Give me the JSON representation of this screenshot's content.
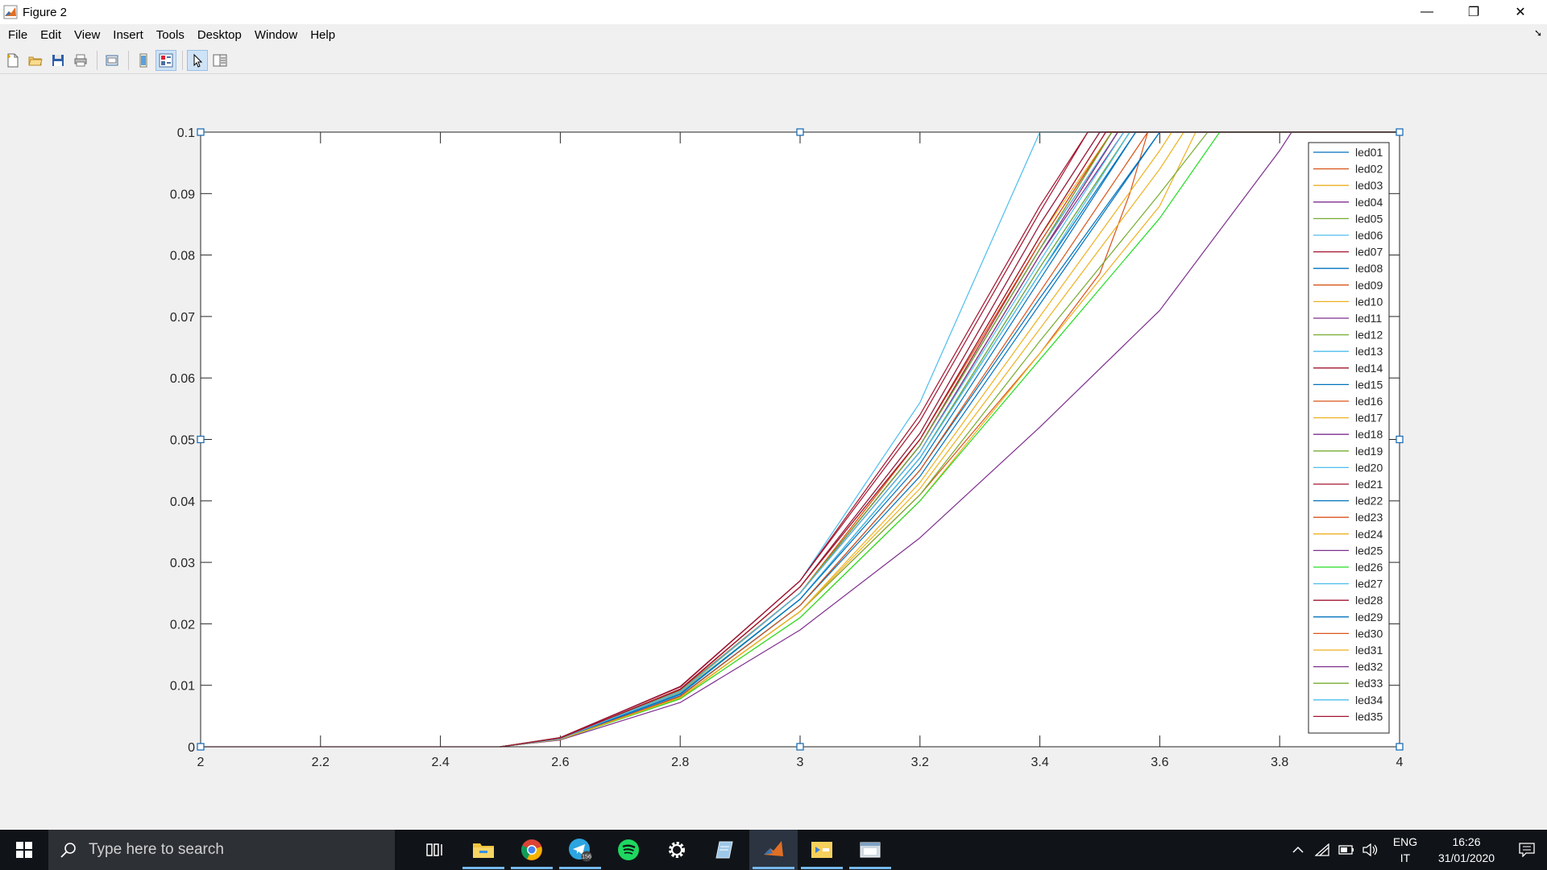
{
  "window": {
    "title": "Figure 2",
    "controls": {
      "minimize": "—",
      "maximize": "❐",
      "close": "✕"
    }
  },
  "menu": {
    "items": [
      "File",
      "Edit",
      "View",
      "Insert",
      "Tools",
      "Desktop",
      "Window",
      "Help"
    ],
    "dock_arrow": "➘"
  },
  "toolbar": {
    "buttons": [
      "new-figure-icon",
      "open-file-icon",
      "save-icon",
      "print-icon",
      "print-preview-icon",
      "hide-plot-tools-icon",
      "show-plot-tools-icon",
      "edit-plot-arrow-icon",
      "property-inspector-icon"
    ]
  },
  "taskbar": {
    "search_placeholder": "Type here to search",
    "telegram_badge": "156",
    "apps": [
      "task-view-icon",
      "file-explorer-icon",
      "chrome-icon",
      "telegram-icon",
      "spotify-icon",
      "settings-icon",
      "notepad-icon",
      "matlab-icon",
      "sticky-app-icon",
      "window-app-icon"
    ],
    "lang_line1": "ENG",
    "lang_line2": "IT",
    "time": "16:26",
    "date": "31/01/2020"
  },
  "chart_data": {
    "type": "line",
    "title": "",
    "xlabel": "",
    "ylabel": "",
    "xlim": [
      2,
      4
    ],
    "ylim": [
      0,
      0.1
    ],
    "xticks": [
      "2",
      "2.2",
      "2.4",
      "2.6",
      "2.8",
      "3",
      "3.2",
      "3.4",
      "3.6",
      "3.8",
      "4"
    ],
    "yticks": [
      "0",
      "0.01",
      "0.02",
      "0.03",
      "0.04",
      "0.05",
      "0.06",
      "0.07",
      "0.08",
      "0.09",
      "0.1"
    ],
    "legend_position": "top-right",
    "grid": false,
    "series": [
      {
        "name": "led01",
        "color": "#0072bd",
        "x": [
          2.5,
          2.6,
          2.8,
          3.0,
          3.2,
          3.4,
          3.55
        ],
        "y": [
          0,
          0.0013,
          0.0085,
          0.024,
          0.047,
          0.078,
          0.1
        ]
      },
      {
        "name": "led02",
        "color": "#d95319",
        "x": [
          2.5,
          2.6,
          2.8,
          3.0,
          3.2,
          3.4,
          3.53
        ],
        "y": [
          0,
          0.0013,
          0.009,
          0.025,
          0.049,
          0.081,
          0.1
        ]
      },
      {
        "name": "led03",
        "color": "#edb120",
        "x": [
          2.5,
          2.6,
          2.8,
          3.0,
          3.2,
          3.4,
          3.52
        ],
        "y": [
          0,
          0.0014,
          0.0092,
          0.025,
          0.05,
          0.083,
          0.1
        ]
      },
      {
        "name": "led04",
        "color": "#7e2f8e",
        "x": [
          2.5,
          2.6,
          2.8,
          3.0,
          3.2,
          3.4,
          3.53
        ],
        "y": [
          0,
          0.0013,
          0.009,
          0.025,
          0.049,
          0.081,
          0.1
        ]
      },
      {
        "name": "led05",
        "color": "#77ac30",
        "x": [
          2.5,
          2.6,
          2.8,
          3.0,
          3.2,
          3.4,
          3.55
        ],
        "y": [
          0,
          0.0013,
          0.0088,
          0.024,
          0.047,
          0.078,
          0.1
        ]
      },
      {
        "name": "led06",
        "color": "#4dbeee",
        "x": [
          2.5,
          2.6,
          2.8,
          3.0,
          3.2,
          3.4
        ],
        "y": [
          0,
          0.0015,
          0.0098,
          0.027,
          0.056,
          0.1
        ]
      },
      {
        "name": "led07",
        "color": "#a2142f",
        "x": [
          2.5,
          2.6,
          2.8,
          3.0,
          3.2,
          3.4,
          3.48
        ],
        "y": [
          0,
          0.0015,
          0.0098,
          0.027,
          0.054,
          0.088,
          0.1
        ]
      },
      {
        "name": "led08",
        "color": "#0072bd",
        "x": [
          2.5,
          2.6,
          2.8,
          3.0,
          3.2,
          3.4,
          3.56
        ],
        "y": [
          0,
          0.0013,
          0.0087,
          0.024,
          0.047,
          0.077,
          0.1
        ]
      },
      {
        "name": "led09",
        "color": "#d95319",
        "x": [
          2.5,
          2.6,
          2.8,
          3.0,
          3.2,
          3.4,
          3.5,
          3.55,
          3.58
        ],
        "y": [
          0,
          0.0012,
          0.008,
          0.022,
          0.041,
          0.064,
          0.077,
          0.09,
          0.1
        ]
      },
      {
        "name": "led10",
        "color": "#edb120",
        "x": [
          2.5,
          2.6,
          2.8,
          3.0,
          3.2,
          3.4,
          3.6,
          3.66
        ],
        "y": [
          0,
          0.0012,
          0.0078,
          0.021,
          0.04,
          0.064,
          0.088,
          0.1
        ]
      },
      {
        "name": "led11",
        "color": "#7e2f8e",
        "x": [
          2.5,
          2.6,
          2.8,
          3.0,
          3.2,
          3.4,
          3.54
        ],
        "y": [
          0,
          0.0013,
          0.009,
          0.025,
          0.048,
          0.08,
          0.1
        ]
      },
      {
        "name": "led12",
        "color": "#77ac30",
        "x": [
          2.5,
          2.6,
          2.8,
          3.0,
          3.2,
          3.4,
          3.52
        ],
        "y": [
          0,
          0.0014,
          0.009,
          0.025,
          0.049,
          0.081,
          0.1
        ]
      },
      {
        "name": "led13",
        "color": "#4dbeee",
        "x": [
          2.5,
          2.6,
          2.8,
          3.0,
          3.2,
          3.4,
          3.5
        ],
        "y": [
          0,
          0.0014,
          0.0093,
          0.026,
          0.051,
          0.085,
          0.1
        ]
      },
      {
        "name": "led14",
        "color": "#a2142f",
        "x": [
          2.5,
          2.6,
          2.8,
          3.0,
          3.2,
          3.4,
          3.5
        ],
        "y": [
          0,
          0.0014,
          0.0094,
          0.026,
          0.051,
          0.085,
          0.1
        ]
      },
      {
        "name": "led15",
        "color": "#0072bd",
        "x": [
          2.5,
          2.6,
          2.8,
          3.0,
          3.2,
          3.4,
          3.6
        ],
        "y": [
          0,
          0.0012,
          0.0082,
          0.023,
          0.044,
          0.072,
          0.1
        ]
      },
      {
        "name": "led16",
        "color": "#d95319",
        "x": [
          2.5,
          2.6,
          2.8,
          3.0,
          3.2,
          3.4,
          3.51
        ],
        "y": [
          0,
          0.0014,
          0.0093,
          0.026,
          0.05,
          0.083,
          0.1
        ]
      },
      {
        "name": "led17",
        "color": "#edb120",
        "x": [
          2.5,
          2.6,
          2.8,
          3.0,
          3.2,
          3.4,
          3.53
        ],
        "y": [
          0,
          0.0013,
          0.0089,
          0.025,
          0.048,
          0.08,
          0.1
        ]
      },
      {
        "name": "led18",
        "color": "#7e2f8e",
        "x": [
          2.5,
          2.6,
          2.8,
          3.0,
          3.2,
          3.4,
          3.6,
          3.8,
          3.82
        ],
        "y": [
          0,
          0.0011,
          0.0072,
          0.019,
          0.034,
          0.052,
          0.071,
          0.097,
          0.1
        ]
      },
      {
        "name": "led19",
        "color": "#77ac30",
        "x": [
          2.5,
          2.6,
          2.8,
          3.0,
          3.2,
          3.4,
          3.6,
          3.68
        ],
        "y": [
          0,
          0.0012,
          0.008,
          0.022,
          0.041,
          0.066,
          0.09,
          0.1
        ]
      },
      {
        "name": "led20",
        "color": "#4dbeee",
        "x": [
          2.5,
          2.6,
          2.8,
          3.0,
          3.2,
          3.4,
          3.53
        ],
        "y": [
          0,
          0.0013,
          0.009,
          0.025,
          0.049,
          0.081,
          0.1
        ]
      },
      {
        "name": "led21",
        "color": "#a2142f",
        "x": [
          2.5,
          2.6,
          2.8,
          3.0,
          3.2,
          3.4,
          3.52
        ],
        "y": [
          0,
          0.0014,
          0.0092,
          0.025,
          0.049,
          0.082,
          0.1
        ]
      },
      {
        "name": "led22",
        "color": "#0072bd",
        "x": [
          2.5,
          2.6,
          2.8,
          3.0,
          3.2,
          3.4,
          3.6
        ],
        "y": [
          0,
          0.0012,
          0.0083,
          0.023,
          0.045,
          0.073,
          0.1
        ]
      },
      {
        "name": "led23",
        "color": "#d95319",
        "x": [
          2.5,
          2.6,
          2.8,
          3.0,
          3.2,
          3.4,
          3.58
        ],
        "y": [
          0,
          0.0012,
          0.0082,
          0.023,
          0.045,
          0.074,
          0.1
        ]
      },
      {
        "name": "led24",
        "color": "#edb120",
        "x": [
          2.5,
          2.6,
          2.8,
          3.0,
          3.2,
          3.4,
          3.6,
          3.64
        ],
        "y": [
          0,
          0.0012,
          0.0079,
          0.022,
          0.042,
          0.068,
          0.094,
          0.1
        ]
      },
      {
        "name": "led25",
        "color": "#7e2f8e",
        "x": [
          2.5,
          2.6,
          2.8,
          3.0,
          3.2,
          3.4,
          3.52
        ],
        "y": [
          0,
          0.0013,
          0.009,
          0.025,
          0.049,
          0.081,
          0.1
        ]
      },
      {
        "name": "led26",
        "color": "#22dd22",
        "x": [
          2.5,
          2.6,
          2.8,
          3.0,
          3.2,
          3.4,
          3.6,
          3.7
        ],
        "y": [
          0,
          0.0012,
          0.0078,
          0.021,
          0.04,
          0.063,
          0.086,
          0.1
        ]
      },
      {
        "name": "led27",
        "color": "#4dbeee",
        "x": [
          2.5,
          2.6,
          2.8,
          3.0,
          3.2,
          3.4,
          3.55
        ],
        "y": [
          0,
          0.0013,
          0.0087,
          0.024,
          0.047,
          0.077,
          0.1
        ]
      },
      {
        "name": "led28",
        "color": "#a2142f",
        "x": [
          2.5,
          2.6,
          2.8,
          3.0,
          3.2,
          3.4,
          3.48
        ],
        "y": [
          0,
          0.0015,
          0.0097,
          0.027,
          0.053,
          0.087,
          0.1
        ]
      },
      {
        "name": "led29",
        "color": "#0072bd",
        "x": [
          2.5,
          2.6,
          2.8,
          3.0,
          3.2,
          3.4,
          3.56
        ],
        "y": [
          0,
          0.0013,
          0.0086,
          0.024,
          0.046,
          0.076,
          0.1
        ]
      },
      {
        "name": "led30",
        "color": "#d95319",
        "x": [
          2.5,
          2.6,
          2.8,
          3.0,
          3.2,
          3.4,
          3.52
        ],
        "y": [
          0,
          0.0014,
          0.0092,
          0.025,
          0.05,
          0.082,
          0.1
        ]
      },
      {
        "name": "led31",
        "color": "#edb120",
        "x": [
          2.5,
          2.6,
          2.8,
          3.0,
          3.2,
          3.4,
          3.6,
          3.62
        ],
        "y": [
          0,
          0.0012,
          0.008,
          0.022,
          0.043,
          0.07,
          0.097,
          0.1
        ]
      },
      {
        "name": "led32",
        "color": "#7e2f8e",
        "x": [
          2.5,
          2.6,
          2.8,
          3.0,
          3.2,
          3.4,
          3.53
        ],
        "y": [
          0,
          0.0013,
          0.009,
          0.025,
          0.048,
          0.08,
          0.1
        ]
      },
      {
        "name": "led33",
        "color": "#77ac30",
        "x": [
          2.5,
          2.6,
          2.8,
          3.0,
          3.2,
          3.4,
          3.52
        ],
        "y": [
          0,
          0.0014,
          0.0091,
          0.025,
          0.049,
          0.081,
          0.1
        ]
      },
      {
        "name": "led34",
        "color": "#4dbeee",
        "x": [
          2.5,
          2.6,
          2.8,
          3.0,
          3.2,
          3.4,
          3.54
        ],
        "y": [
          0,
          0.0013,
          0.009,
          0.025,
          0.048,
          0.079,
          0.1
        ]
      },
      {
        "name": "led35",
        "color": "#a2142f",
        "x": [
          2.5,
          2.6,
          2.8,
          3.0,
          3.2,
          3.4,
          3.51
        ],
        "y": [
          0,
          0.0014,
          0.0093,
          0.026,
          0.05,
          0.083,
          0.1
        ]
      }
    ]
  }
}
